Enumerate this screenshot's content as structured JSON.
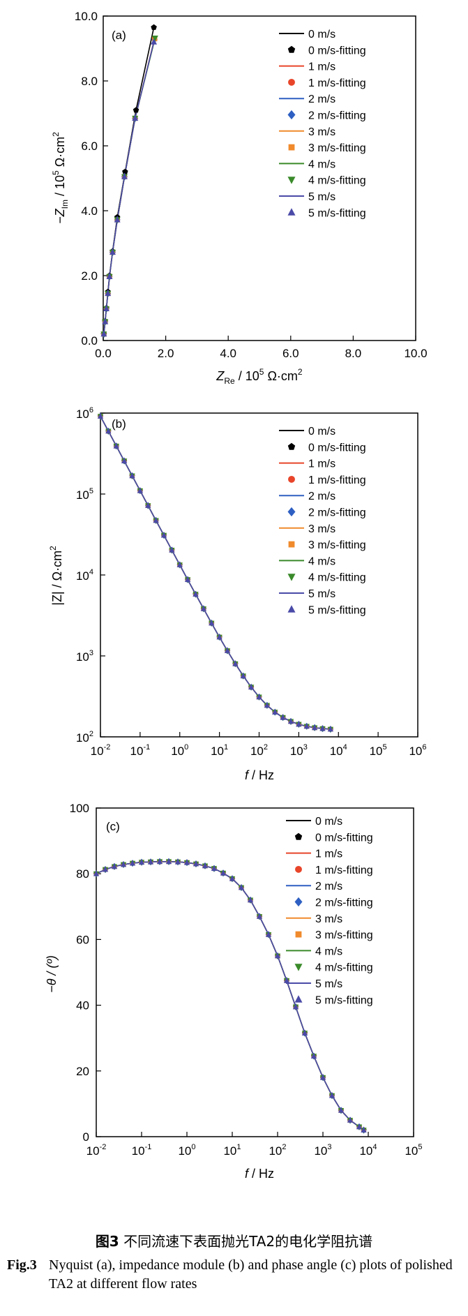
{
  "chart_data": [
    {
      "type": "scatter",
      "panel_label": "(a)",
      "xlabel": {
        "main": "Z",
        "sub": "Re",
        "rest": " / 10",
        "sup": "5",
        "units": " Ω·cm",
        "sup2": "2"
      },
      "ylabel": {
        "main": "−Z",
        "sub": "Im",
        "rest": " / 10",
        "sup": "5",
        "units": " Ω·cm",
        "sup2": "2"
      },
      "xlim": [
        0,
        10
      ],
      "ylim": [
        0,
        10
      ],
      "xticks": [
        "0.0",
        "2.0",
        "4.0",
        "6.0",
        "8.0",
        "10.0"
      ],
      "yticks": [
        "0.0",
        "2.0",
        "4.0",
        "6.0",
        "8.0",
        "10.0"
      ],
      "series": [
        {
          "name": "0 m/s",
          "color": "#000000",
          "marker": "pentagon",
          "x": [
            0.02,
            0.06,
            0.1,
            0.15,
            0.2,
            0.3,
            0.45,
            0.7,
            1.05,
            1.62
          ],
          "y": [
            0.2,
            0.6,
            1.0,
            1.5,
            2.0,
            2.75,
            3.8,
            5.2,
            7.1,
            9.65
          ]
        },
        {
          "name": "1 m/s",
          "color": "#e8452a",
          "marker": "circle",
          "x": [
            0.02,
            0.06,
            0.1,
            0.15,
            0.2,
            0.3,
            0.45,
            0.68,
            1.02,
            1.64
          ],
          "y": [
            0.2,
            0.58,
            0.98,
            1.45,
            1.97,
            2.72,
            3.72,
            5.05,
            6.85,
            9.3
          ]
        },
        {
          "name": "2 m/s",
          "color": "#2e5fc2",
          "marker": "diamond",
          "x": [
            0.02,
            0.06,
            0.1,
            0.15,
            0.2,
            0.3,
            0.45,
            0.68,
            1.02,
            1.64
          ],
          "y": [
            0.2,
            0.58,
            0.98,
            1.45,
            1.97,
            2.72,
            3.72,
            5.05,
            6.85,
            9.28
          ]
        },
        {
          "name": "3 m/s",
          "color": "#f08a2c",
          "marker": "square",
          "x": [
            0.02,
            0.06,
            0.1,
            0.15,
            0.2,
            0.3,
            0.45,
            0.68,
            1.02,
            1.65
          ],
          "y": [
            0.2,
            0.58,
            0.98,
            1.45,
            1.97,
            2.72,
            3.72,
            5.05,
            6.85,
            9.3
          ]
        },
        {
          "name": "4 m/s",
          "color": "#3a8a2a",
          "marker": "triangle-down",
          "x": [
            0.02,
            0.06,
            0.1,
            0.15,
            0.2,
            0.3,
            0.45,
            0.68,
            1.02,
            1.66
          ],
          "y": [
            0.2,
            0.58,
            0.98,
            1.45,
            1.97,
            2.72,
            3.72,
            5.05,
            6.85,
            9.32
          ]
        },
        {
          "name": "5 m/s",
          "color": "#4a4aa8",
          "marker": "triangle-up",
          "x": [
            0.02,
            0.06,
            0.1,
            0.15,
            0.2,
            0.3,
            0.45,
            0.68,
            1.02,
            1.62
          ],
          "y": [
            0.2,
            0.58,
            0.98,
            1.45,
            1.97,
            2.72,
            3.72,
            5.05,
            6.85,
            9.2
          ]
        }
      ]
    },
    {
      "type": "scatter",
      "panel_label": "(b)",
      "xscale": "log",
      "yscale": "log",
      "xlabel": {
        "main": "f",
        "rest": " / Hz"
      },
      "ylabel": {
        "main": "|Z| / Ω·cm",
        "sup": "2"
      },
      "xlim": [
        0.01,
        1000000
      ],
      "ylim": [
        100,
        1000000
      ],
      "xticks": [
        {
          "b": "10",
          "e": "-2"
        },
        {
          "b": "10",
          "e": "-1"
        },
        {
          "b": "10",
          "e": "0"
        },
        {
          "b": "10",
          "e": "1"
        },
        {
          "b": "10",
          "e": "2"
        },
        {
          "b": "10",
          "e": "3"
        },
        {
          "b": "10",
          "e": "4"
        },
        {
          "b": "10",
          "e": "5"
        },
        {
          "b": "10",
          "e": "6"
        }
      ],
      "yticks": [
        {
          "b": "10",
          "e": "2"
        },
        {
          "b": "10",
          "e": "3"
        },
        {
          "b": "10",
          "e": "4"
        },
        {
          "b": "10",
          "e": "5"
        },
        {
          "b": "10",
          "e": "6"
        }
      ],
      "model": {
        "description": "log|Z| = log(120 + 13200 * f^-0.92)"
      },
      "f_range": [
        0.01,
        8000
      ],
      "series": [
        {
          "name": "0 m/s",
          "color": "#000000",
          "marker": "pentagon"
        },
        {
          "name": "1 m/s",
          "color": "#e8452a",
          "marker": "circle"
        },
        {
          "name": "2 m/s",
          "color": "#2e5fc2",
          "marker": "diamond"
        },
        {
          "name": "3 m/s",
          "color": "#f08a2c",
          "marker": "square"
        },
        {
          "name": "4 m/s",
          "color": "#3a8a2a",
          "marker": "triangle-down"
        },
        {
          "name": "5 m/s",
          "color": "#4a4aa8",
          "marker": "triangle-up"
        }
      ]
    },
    {
      "type": "scatter",
      "panel_label": "(c)",
      "xscale": "log",
      "xlabel": {
        "main": "f",
        "rest": " / Hz"
      },
      "ylabel": {
        "main": "−θ / (º)"
      },
      "xlim": [
        0.01,
        100000
      ],
      "ylim": [
        0,
        100
      ],
      "xticks": [
        {
          "b": "10",
          "e": "-2"
        },
        {
          "b": "10",
          "e": "-1"
        },
        {
          "b": "10",
          "e": "0"
        },
        {
          "b": "10",
          "e": "1"
        },
        {
          "b": "10",
          "e": "2"
        },
        {
          "b": "10",
          "e": "3"
        },
        {
          "b": "10",
          "e": "4"
        },
        {
          "b": "10",
          "e": "5"
        }
      ],
      "yticks": [
        "0",
        "20",
        "40",
        "60",
        "80",
        "100"
      ],
      "phase_points": [
        [
          -2.0,
          80.0
        ],
        [
          -1.8,
          81.3
        ],
        [
          -1.6,
          82.2
        ],
        [
          -1.4,
          82.8
        ],
        [
          -1.2,
          83.2
        ],
        [
          -1.0,
          83.5
        ],
        [
          -0.8,
          83.6
        ],
        [
          -0.6,
          83.7
        ],
        [
          -0.4,
          83.7
        ],
        [
          -0.2,
          83.6
        ],
        [
          0.0,
          83.4
        ],
        [
          0.2,
          83.0
        ],
        [
          0.4,
          82.4
        ],
        [
          0.6,
          81.6
        ],
        [
          0.8,
          80.2
        ],
        [
          1.0,
          78.5
        ],
        [
          1.2,
          75.8
        ],
        [
          1.4,
          72.0
        ],
        [
          1.6,
          67.0
        ],
        [
          1.8,
          61.5
        ],
        [
          2.0,
          55.0
        ],
        [
          2.2,
          47.5
        ],
        [
          2.4,
          39.5
        ],
        [
          2.6,
          31.5
        ],
        [
          2.8,
          24.5
        ],
        [
          3.0,
          18.0
        ],
        [
          3.2,
          12.5
        ],
        [
          3.4,
          8.0
        ],
        [
          3.6,
          5.0
        ],
        [
          3.8,
          3.0
        ],
        [
          3.9,
          2.0
        ]
      ],
      "series": [
        {
          "name": "0 m/s",
          "color": "#000000",
          "marker": "pentagon"
        },
        {
          "name": "1 m/s",
          "color": "#e8452a",
          "marker": "circle"
        },
        {
          "name": "2 m/s",
          "color": "#2e5fc2",
          "marker": "diamond"
        },
        {
          "name": "3 m/s",
          "color": "#f08a2c",
          "marker": "square"
        },
        {
          "name": "4 m/s",
          "color": "#3a8a2a",
          "marker": "triangle-down"
        },
        {
          "name": "5 m/s",
          "color": "#4a4aa8",
          "marker": "triangle-up"
        }
      ]
    }
  ],
  "legend_labels": [
    "0 m/s",
    "0 m/s-fitting",
    "1 m/s",
    "1 m/s-fitting",
    "2 m/s",
    "2 m/s-fitting",
    "3 m/s",
    "3 m/s-fitting",
    "4 m/s",
    "4 m/s-fitting",
    "5 m/s",
    "5 m/s-fitting"
  ],
  "caption": {
    "cn_label": "图3",
    "cn_text": " 不同流速下表面抛光TA2的电化学阻抗谱",
    "en_label": "Fig.3",
    "en_text": "Nyquist (a), impedance module (b) and phase angle (c) plots of polished TA2 at different flow rates"
  }
}
